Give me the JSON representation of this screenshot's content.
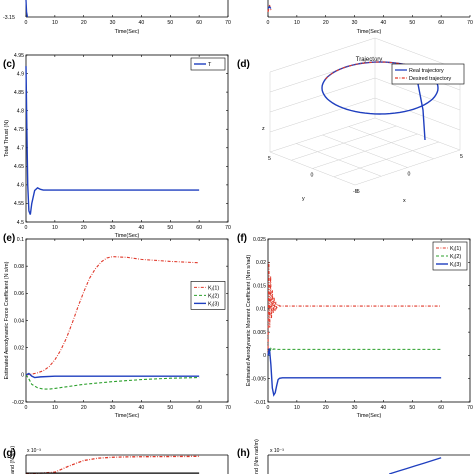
{
  "panels": {
    "a": {
      "xlabel": "Time(Sec)",
      "ytick_bottom": "-3.15",
      "xticks": [
        "0",
        "10",
        "20",
        "30",
        "40",
        "50",
        "60",
        "70"
      ]
    },
    "b": {
      "xlabel": "Time(Sec)",
      "xticks": [
        "0",
        "10",
        "20",
        "30",
        "40",
        "50",
        "60",
        "70"
      ]
    },
    "c": {
      "letter": "(c)"
    },
    "d": {
      "letter": "(d)"
    },
    "e": {
      "letter": "(e)"
    },
    "f": {
      "letter": "(f)"
    },
    "g": {
      "letter": "(g)",
      "exponent": "x 10⁻³",
      "ylabel": "and (N s/m)"
    },
    "h": {
      "letter": "(h)",
      "exponent": "x 10⁻³",
      "ylabel": "nd (Nm rad/m)"
    }
  },
  "colors": {
    "blue": "#1f3fbf",
    "red": "#e0392b",
    "green": "#2ca02c",
    "black": "#000000"
  },
  "chart_data": [
    {
      "id": "c",
      "type": "line",
      "title": "",
      "xlabel": "Time(Sec)",
      "ylabel": "Total Thrust (N)",
      "xlim": [
        0,
        70
      ],
      "ylim": [
        4.5,
        4.95
      ],
      "xticks": [
        0,
        10,
        20,
        30,
        40,
        50,
        60,
        70
      ],
      "yticks": [
        4.5,
        4.55,
        4.6,
        4.65,
        4.7,
        4.75,
        4.8,
        4.85,
        4.9,
        4.95
      ],
      "legend": {
        "position": "top-right",
        "entries": [
          "T"
        ]
      },
      "series": [
        {
          "name": "T",
          "color": "#1f3fbf",
          "style": "solid",
          "x": [
            0,
            0.3,
            0.6,
            1.0,
            1.5,
            2.0,
            3.0,
            4.0,
            5.0,
            6.0,
            8.0,
            10,
            20,
            30,
            40,
            50,
            60
          ],
          "y": [
            4.92,
            4.75,
            4.6,
            4.53,
            4.52,
            4.55,
            4.585,
            4.592,
            4.588,
            4.586,
            4.586,
            4.586,
            4.586,
            4.586,
            4.586,
            4.586,
            4.586
          ]
        }
      ]
    },
    {
      "id": "d",
      "type": "line3d",
      "title": "Trajectory",
      "xlabel": "x",
      "ylabel": "y",
      "zlabel": "z",
      "legend": {
        "position": "top-right",
        "entries": [
          "Real trajectory",
          "Desired trajectory"
        ]
      },
      "x_ticks": [
        "5",
        "0",
        "-5"
      ],
      "y_ticks": [
        "5",
        "0",
        "-5"
      ],
      "series": [
        {
          "name": "Real trajectory",
          "color": "#1f3fbf",
          "style": "solid"
        },
        {
          "name": "Desired trajectory",
          "color": "#e0392b",
          "style": "dashdot"
        }
      ]
    },
    {
      "id": "e",
      "type": "line",
      "title": "",
      "xlabel": "Time(Sec)",
      "ylabel": "Estimated Aerodynamic Force Coefficient (N s/m)",
      "xlim": [
        0,
        70
      ],
      "ylim": [
        -0.02,
        0.1
      ],
      "xticks": [
        0,
        10,
        20,
        30,
        40,
        50,
        60,
        70
      ],
      "yticks": [
        -0.02,
        0,
        0.02,
        0.04,
        0.06,
        0.08,
        0.1
      ],
      "legend": {
        "position": "right",
        "entries": [
          "Kⱼ(1)",
          "Kⱼ(2)",
          "Kⱼ(3)"
        ]
      },
      "series": [
        {
          "name": "Kⱼ(1)",
          "color": "#e0392b",
          "style": "dashdot",
          "x": [
            0,
            2,
            4,
            6,
            8,
            10,
            12,
            14,
            16,
            18,
            20,
            22,
            24,
            26,
            28,
            30,
            35,
            40,
            50,
            60
          ],
          "y": [
            0.0,
            0.0005,
            0.0015,
            0.003,
            0.006,
            0.011,
            0.018,
            0.027,
            0.038,
            0.05,
            0.061,
            0.071,
            0.078,
            0.083,
            0.086,
            0.087,
            0.0865,
            0.085,
            0.0835,
            0.0825
          ]
        },
        {
          "name": "Kⱼ(2)",
          "color": "#2ca02c",
          "style": "dashed",
          "x": [
            0,
            1,
            2,
            4,
            6,
            8,
            10,
            15,
            20,
            30,
            40,
            50,
            60
          ],
          "y": [
            0.0,
            -0.003,
            -0.007,
            -0.0095,
            -0.0105,
            -0.0105,
            -0.01,
            -0.0085,
            -0.007,
            -0.005,
            -0.0035,
            -0.0025,
            -0.002
          ]
        },
        {
          "name": "Kⱼ(3)",
          "color": "#1f3fbf",
          "style": "solid",
          "x": [
            0,
            1,
            2,
            3,
            5,
            10,
            20,
            30,
            40,
            50,
            60
          ],
          "y": [
            0.0,
            0.001,
            -0.001,
            -0.002,
            -0.0015,
            -0.001,
            -0.001,
            -0.001,
            -0.001,
            -0.001,
            -0.001
          ]
        }
      ]
    },
    {
      "id": "f",
      "type": "line",
      "title": "",
      "xlabel": "Time(Sec)",
      "ylabel": "Estimated Aerodynamic Moment Coefficient (Nm s/rad)",
      "xlim": [
        0,
        70
      ],
      "ylim": [
        -0.01,
        0.025
      ],
      "xticks": [
        0,
        10,
        20,
        30,
        40,
        50,
        60,
        70
      ],
      "yticks": [
        -0.01,
        -0.005,
        0,
        0.005,
        0.01,
        0.015,
        0.02,
        0.025
      ],
      "legend": {
        "position": "top-right",
        "entries": [
          "Kⱼ(1)",
          "Kⱼ(2)",
          "Kⱼ(3)"
        ]
      },
      "series": [
        {
          "name": "Kⱼ(1)",
          "color": "#e0392b",
          "style": "dashdot",
          "x": [
            0,
            0.3,
            0.6,
            0.9,
            1.2,
            1.5,
            1.8,
            2.1,
            2.4,
            2.7,
            3.0,
            3.5,
            4,
            5,
            10,
            20,
            30,
            40,
            50,
            60
          ],
          "y": [
            0.0,
            0.02,
            0.006,
            0.017,
            0.008,
            0.014,
            0.009,
            0.0125,
            0.0095,
            0.0115,
            0.0102,
            0.011,
            0.0106,
            0.0106,
            0.0106,
            0.0106,
            0.0106,
            0.0106,
            0.0106,
            0.0106
          ]
        },
        {
          "name": "Kⱼ(2)",
          "color": "#2ca02c",
          "style": "dashed",
          "x": [
            0,
            0.5,
            1.0,
            1.5,
            2.0,
            3.0,
            5,
            10,
            20,
            30,
            40,
            50,
            60
          ],
          "y": [
            0.0,
            0.0005,
            0.0015,
            0.0012,
            0.0014,
            0.0013,
            0.0013,
            0.0013,
            0.0013,
            0.0013,
            0.0013,
            0.0013,
            0.0013
          ]
        },
        {
          "name": "Kⱼ(3)",
          "color": "#1f3fbf",
          "style": "solid",
          "x": [
            0,
            0.5,
            1.0,
            1.5,
            2.0,
            2.5,
            3.0,
            3.5,
            4.0,
            5.0,
            6.0,
            8.0,
            10,
            20,
            30,
            40,
            50,
            60
          ],
          "y": [
            0.0,
            0.0015,
            -0.002,
            -0.007,
            -0.0085,
            -0.008,
            -0.0065,
            -0.0052,
            -0.0049,
            -0.0048,
            -0.0048,
            -0.0048,
            -0.0048,
            -0.0048,
            -0.0048,
            -0.0048,
            -0.0048,
            -0.0048
          ]
        }
      ]
    },
    {
      "id": "a",
      "type": "line",
      "xlabel": "Time(Sec)",
      "xlim": [
        0,
        70
      ],
      "xticks": [
        0,
        10,
        20,
        30,
        40,
        50,
        60,
        70
      ],
      "series": [
        {
          "color": "#1f3fbf",
          "style": "solid",
          "x": [
            0,
            0.2,
            0.5
          ],
          "y": [
            1,
            0.3,
            0
          ]
        }
      ]
    },
    {
      "id": "b",
      "type": "line",
      "xlabel": "Time(Sec)",
      "xlim": [
        0,
        70
      ],
      "xticks": [
        0,
        10,
        20,
        30,
        40,
        50,
        60,
        70
      ],
      "series": [
        {
          "color": "#e0392b",
          "style": "dashdot",
          "x": [
            0,
            0.5,
            1.0
          ],
          "y": [
            0.3,
            0.7,
            0.4
          ]
        },
        {
          "color": "#1f3fbf",
          "style": "solid",
          "x": [
            0,
            0.5,
            1.0
          ],
          "y": [
            0.5,
            0.6,
            0.5
          ]
        }
      ]
    },
    {
      "id": "g",
      "type": "line",
      "xlim": [
        0,
        70
      ],
      "series": [
        {
          "color": "#e0392b",
          "style": "dashdot",
          "x": [
            0,
            10,
            15,
            20,
            25,
            30,
            35,
            40,
            45,
            50,
            55,
            60
          ],
          "y": [
            0.0,
            0.1,
            0.45,
            0.75,
            0.88,
            0.93,
            0.95,
            0.96,
            0.965,
            0.97,
            0.975,
            0.98
          ]
        },
        {
          "color": "#000000",
          "style": "solid",
          "x": [
            0,
            10,
            20,
            30,
            40,
            50,
            60
          ],
          "y": [
            0.05,
            0.05,
            0.05,
            0.05,
            0.05,
            0.05,
            0.05
          ]
        }
      ]
    },
    {
      "id": "h",
      "type": "line",
      "xlim": [
        0,
        70
      ],
      "series": [
        {
          "color": "#1f3fbf",
          "style": "solid",
          "x": [
            42,
            45,
            48,
            51,
            54,
            57,
            60
          ],
          "y": [
            0.0,
            0.15,
            0.3,
            0.45,
            0.6,
            0.75,
            0.9
          ]
        }
      ]
    }
  ]
}
